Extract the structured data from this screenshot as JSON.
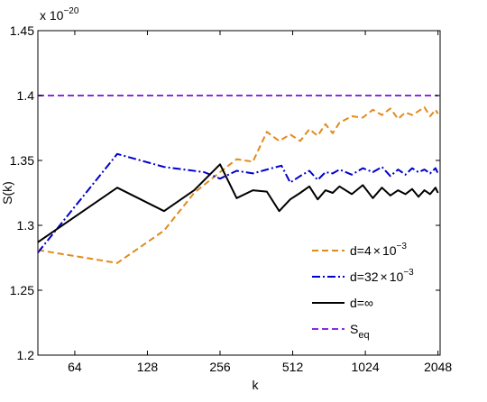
{
  "chart_data": {
    "type": "line",
    "title": "",
    "xlabel": "k",
    "ylabel": "S(k)",
    "x_scale": "log2",
    "xlim": [
      45,
      2090
    ],
    "ylim": [
      1.2,
      1.45
    ],
    "y_multiplier": "x 10",
    "y_multiplier_exp": "−20",
    "x_ticks": [
      64,
      128,
      256,
      512,
      1024,
      2048
    ],
    "x_tick_labels": [
      "64",
      "128",
      "256",
      "512",
      "1024",
      "2048"
    ],
    "y_ticks": [
      1.2,
      1.25,
      1.3,
      1.35,
      1.4,
      1.45
    ],
    "y_tick_labels": [
      "1.2",
      "1.25",
      "1.3",
      "1.35",
      "1.4",
      "1.45"
    ],
    "grid": false,
    "legend_position": "bottom-right",
    "colors": {
      "d4": "#e08a1e",
      "d32": "#0000cc",
      "dinf": "#000000",
      "seq": "#8a2be2"
    },
    "series": [
      {
        "name": "d=4 x 10−3",
        "legend_main": "d=4",
        "legend_times": "×",
        "legend_base": "10",
        "legend_exp": "−3",
        "color_key": "d4",
        "dash": "7,4",
        "x": [
          45,
          96,
          150,
          200,
          256,
          300,
          350,
          400,
          450,
          500,
          550,
          600,
          650,
          700,
          750,
          800,
          900,
          1000,
          1100,
          1200,
          1300,
          1400,
          1500,
          1600,
          1700,
          1800,
          1900,
          2000,
          2048
        ],
        "y": [
          1.281,
          1.271,
          1.296,
          1.325,
          1.341,
          1.351,
          1.349,
          1.372,
          1.365,
          1.37,
          1.365,
          1.374,
          1.369,
          1.378,
          1.371,
          1.379,
          1.384,
          1.383,
          1.389,
          1.385,
          1.39,
          1.382,
          1.387,
          1.385,
          1.388,
          1.391,
          1.384,
          1.389,
          1.386
        ]
      },
      {
        "name": "d=32 x 10−3",
        "legend_main": "d=32",
        "legend_times": "×",
        "legend_base": "10",
        "legend_exp": "−3",
        "color_key": "d32",
        "dash": "9,3,2,3",
        "x": [
          45,
          96,
          150,
          220,
          256,
          300,
          350,
          400,
          460,
          500,
          550,
          600,
          650,
          700,
          750,
          800,
          900,
          1000,
          1100,
          1200,
          1300,
          1400,
          1500,
          1600,
          1700,
          1800,
          1900,
          2000,
          2048
        ],
        "y": [
          1.279,
          1.355,
          1.345,
          1.341,
          1.336,
          1.342,
          1.34,
          1.343,
          1.346,
          1.333,
          1.338,
          1.342,
          1.335,
          1.341,
          1.34,
          1.343,
          1.339,
          1.344,
          1.341,
          1.345,
          1.338,
          1.343,
          1.339,
          1.344,
          1.341,
          1.343,
          1.34,
          1.344,
          1.34
        ]
      },
      {
        "name": "d=∞",
        "legend_main": "d=∞",
        "legend_times": "",
        "legend_base": "",
        "legend_exp": "",
        "color_key": "dinf",
        "dash": "",
        "x": [
          45,
          96,
          150,
          200,
          256,
          300,
          350,
          400,
          450,
          500,
          550,
          600,
          650,
          700,
          750,
          800,
          900,
          1000,
          1100,
          1200,
          1300,
          1400,
          1500,
          1600,
          1700,
          1800,
          1900,
          2000,
          2048
        ],
        "y": [
          1.287,
          1.329,
          1.311,
          1.327,
          1.347,
          1.321,
          1.327,
          1.326,
          1.311,
          1.32,
          1.325,
          1.33,
          1.32,
          1.327,
          1.325,
          1.33,
          1.324,
          1.331,
          1.321,
          1.329,
          1.323,
          1.327,
          1.324,
          1.328,
          1.322,
          1.327,
          1.324,
          1.329,
          1.325
        ]
      },
      {
        "name": "Seq",
        "legend_main": "S",
        "legend_times": "",
        "legend_base": "",
        "legend_exp": "",
        "legend_sub": "eq",
        "color_key": "seq",
        "dash": "7,4",
        "x": [
          45,
          2048
        ],
        "y": [
          1.4,
          1.4
        ]
      }
    ]
  }
}
